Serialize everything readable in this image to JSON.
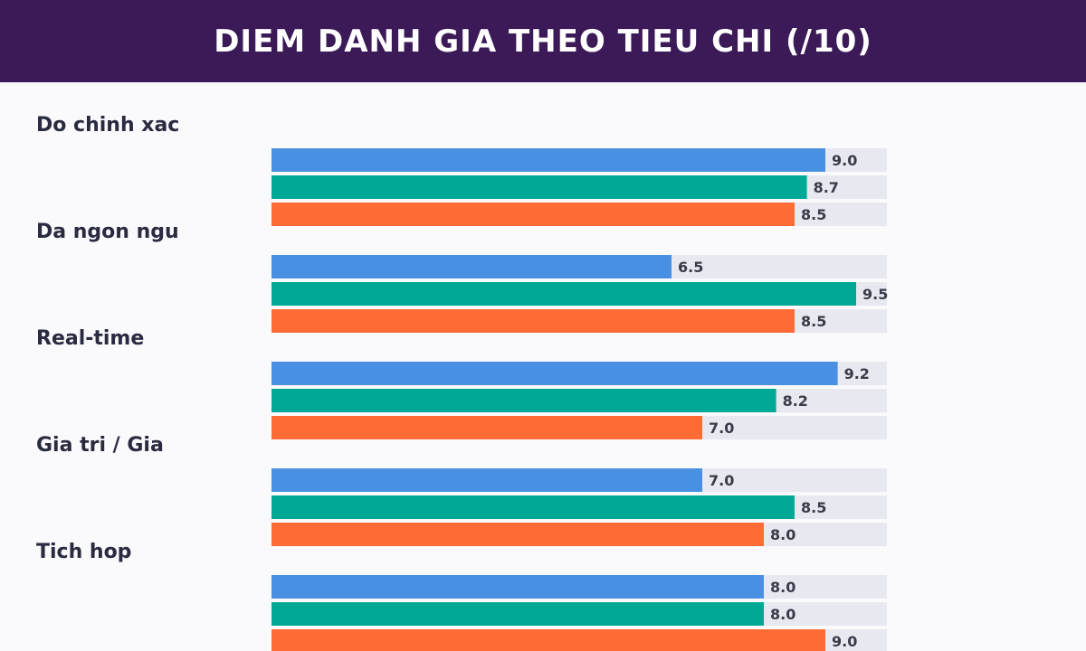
{
  "header": {
    "title": "DIEM DANH GIA THEO TIEU CHI (/10)"
  },
  "chart_data": {
    "type": "bar",
    "orientation": "horizontal",
    "title": "DIEM DANH GIA THEO TIEU CHI (/10)",
    "categories": [
      "Do chinh xac",
      "Da ngon ngu",
      "Real-time",
      "Gia tri / Gia",
      "Tich hop"
    ],
    "xlim": [
      0,
      10
    ],
    "value_format": "0.0",
    "colors": {
      "header_bg": "#3b1a57",
      "track": "#e8e8f0",
      "label": "#2a2a40",
      "value_label": "#3a3a48"
    },
    "series": [
      {
        "color": "#4a90e2",
        "values": [
          9.0,
          6.5,
          9.2,
          7.0,
          8.0
        ]
      },
      {
        "color": "#00a896",
        "values": [
          8.7,
          9.5,
          8.2,
          8.5,
          8.0
        ]
      },
      {
        "color": "#ff6b35",
        "values": [
          8.5,
          8.5,
          7.0,
          8.0,
          9.0
        ]
      }
    ]
  }
}
